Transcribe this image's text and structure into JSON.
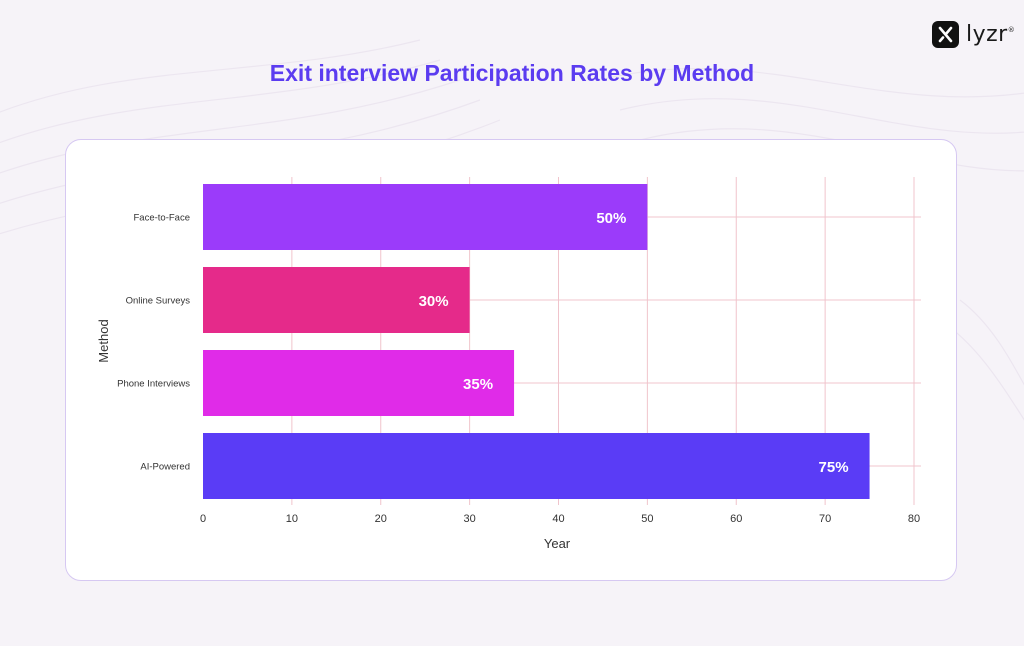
{
  "brand": {
    "name": "lyzr",
    "trademark": "®",
    "icon": "lyzr-logo-icon"
  },
  "colors": {
    "title": "#5b3cf0",
    "grid": "#f0c4cc",
    "axis_text": "#333333",
    "label_text": "#ffffff"
  },
  "chart_data": {
    "type": "bar",
    "orientation": "horizontal",
    "title": "Exit interview Participation Rates by Method",
    "xlabel": "Year",
    "ylabel": "Method",
    "xlim": [
      0,
      80
    ],
    "xticks": [
      0,
      10,
      20,
      30,
      40,
      50,
      60,
      70,
      80
    ],
    "grid": true,
    "categories": [
      "Face-to-Face",
      "Online Surveys",
      "Phone Interviews",
      "AI-Powered"
    ],
    "values": [
      50,
      30,
      35,
      75
    ],
    "data_labels": [
      "50%",
      "30%",
      "35%",
      "75%"
    ],
    "bar_colors": [
      "#9b3bfa",
      "#e52a8a",
      "#e02be8",
      "#5a3cf6"
    ]
  }
}
